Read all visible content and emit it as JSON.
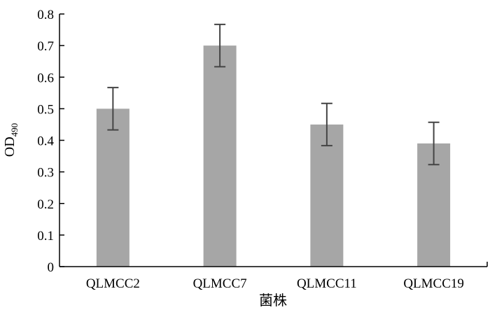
{
  "chart_data": {
    "type": "bar",
    "categories": [
      "QLMCC2",
      "QLMCC7",
      "QLMCC11",
      "QLMCC19"
    ],
    "series": [
      {
        "values": [
          0.5,
          0.7,
          0.45,
          0.39
        ],
        "error": [
          0.067,
          0.067,
          0.067,
          0.067
        ]
      }
    ],
    "title": "",
    "xlabel": "菌株",
    "ylabel_main": "OD",
    "ylabel_sub": "490",
    "ylim": [
      0,
      0.8
    ],
    "yticks": [
      "0",
      "0.1",
      "0.2",
      "0.3",
      "0.4",
      "0.5",
      "0.6",
      "0.7",
      "0.8"
    ],
    "bar_color": "#a6a6a6",
    "grid": false,
    "legend": "none"
  }
}
